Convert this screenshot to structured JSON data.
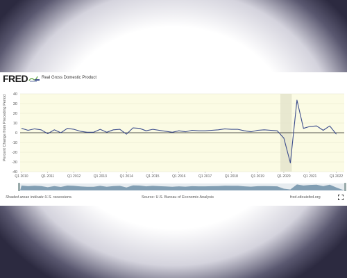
{
  "header": {
    "logo_text": "FRED",
    "legend_label": "Real Gross Domestic Product"
  },
  "footer": {
    "note": "Shaded areas indicate U.S. recessions.",
    "source": "Source: U.S. Bureau of Economic Analysis",
    "url": "fred.stlouisfed.org"
  },
  "icons": {
    "fullscreen": "fullscreen-icon",
    "logo_mark": "swoosh-icon"
  },
  "colors": {
    "line": "#3b4c8c",
    "plot_background": "#fbfbe4",
    "recession_shade": "#e8e8d0",
    "navigator": "#6f91a8"
  },
  "chart_data": {
    "type": "line",
    "ylabel": "Percent Change from Preceding Period",
    "ylim": [
      -40,
      40
    ],
    "yticks": [
      40,
      30,
      20,
      10,
      0,
      -10,
      -20,
      -30,
      -40
    ],
    "xticks": [
      "Q1 2010",
      "Q1 2011",
      "Q1 2012",
      "Q1 2013",
      "Q1 2014",
      "Q1 2015",
      "Q1 2016",
      "Q1 2017",
      "Q1 2018",
      "Q1 2019",
      "Q1 2020",
      "Q1 2021",
      "Q1 2022"
    ],
    "recessions": [
      {
        "start": "Q1 2020",
        "end": "Q2 2020"
      }
    ],
    "series": [
      {
        "name": "Real Gross Domestic Product",
        "x": [
          "2010Q1",
          "2010Q2",
          "2010Q3",
          "2010Q4",
          "2011Q1",
          "2011Q2",
          "2011Q3",
          "2011Q4",
          "2012Q1",
          "2012Q2",
          "2012Q3",
          "2012Q4",
          "2013Q1",
          "2013Q2",
          "2013Q3",
          "2013Q4",
          "2014Q1",
          "2014Q2",
          "2014Q3",
          "2014Q4",
          "2015Q1",
          "2015Q2",
          "2015Q3",
          "2015Q4",
          "2016Q1",
          "2016Q2",
          "2016Q3",
          "2016Q4",
          "2017Q1",
          "2017Q2",
          "2017Q3",
          "2017Q4",
          "2018Q1",
          "2018Q2",
          "2018Q3",
          "2018Q4",
          "2019Q1",
          "2019Q2",
          "2019Q3",
          "2019Q4",
          "2020Q1",
          "2020Q2",
          "2020Q3",
          "2020Q4",
          "2021Q1",
          "2021Q2",
          "2021Q3",
          "2021Q4",
          "2022Q1"
        ],
        "values": [
          4.5,
          2.5,
          4.0,
          3.0,
          -1.0,
          3.0,
          0.0,
          4.5,
          3.5,
          1.5,
          0.5,
          0.5,
          3.5,
          0.5,
          3.0,
          3.5,
          -1.5,
          5.0,
          4.5,
          2.0,
          3.5,
          2.5,
          1.5,
          0.5,
          2.0,
          1.0,
          2.5,
          2.0,
          2.0,
          2.5,
          3.0,
          4.0,
          3.5,
          3.5,
          2.0,
          1.0,
          2.5,
          3.0,
          2.5,
          2.0,
          -5.5,
          -31.0,
          33.5,
          4.5,
          6.5,
          7.0,
          2.5,
          7.0,
          -1.5
        ]
      }
    ]
  }
}
